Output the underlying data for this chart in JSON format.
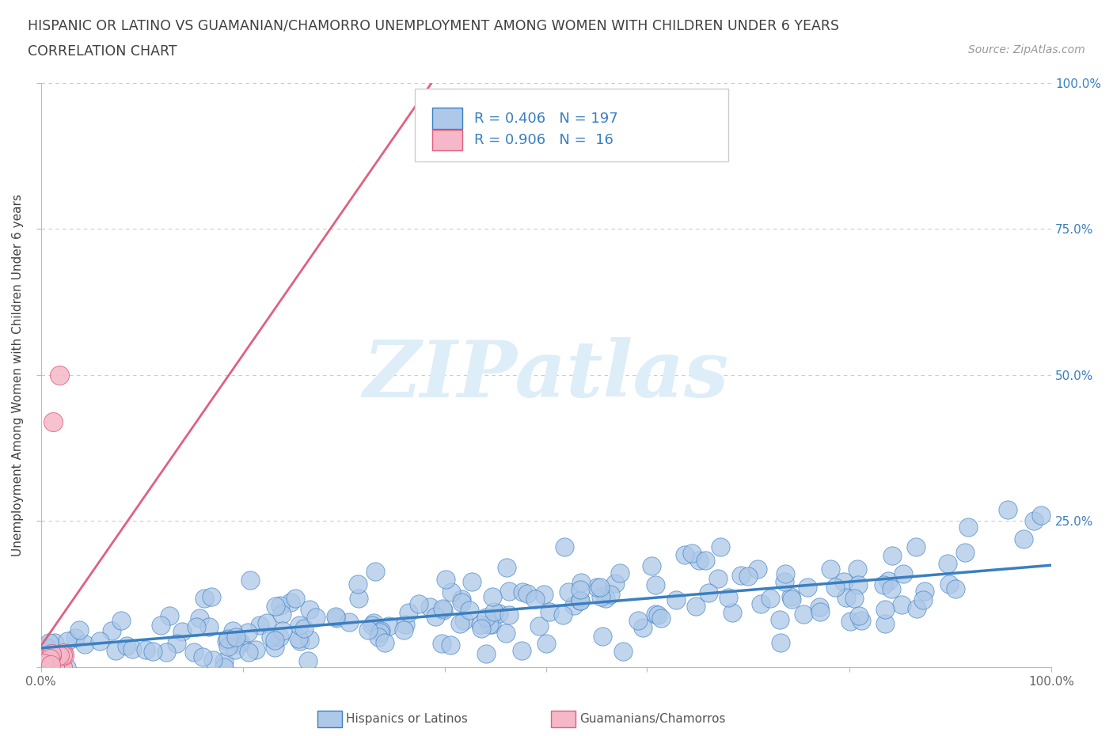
{
  "title_line1": "HISPANIC OR LATINO VS GUAMANIAN/CHAMORRO UNEMPLOYMENT AMONG WOMEN WITH CHILDREN UNDER 6 YEARS",
  "title_line2": "CORRELATION CHART",
  "source_text": "Source: ZipAtlas.com",
  "ylabel": "Unemployment Among Women with Children Under 6 years",
  "xlim": [
    0.0,
    1.0
  ],
  "ylim": [
    0.0,
    1.0
  ],
  "blue_R": 0.406,
  "blue_N": 197,
  "pink_R": 0.906,
  "pink_N": 16,
  "blue_color": "#adc8e8",
  "pink_color": "#f5b8c8",
  "blue_line_color": "#3a7fc1",
  "pink_line_color": "#e06080",
  "legend_color": "#3a7fc1",
  "watermark": "ZIPatlas",
  "background_color": "#ffffff",
  "grid_color": "#cccccc",
  "title_color": "#404040"
}
